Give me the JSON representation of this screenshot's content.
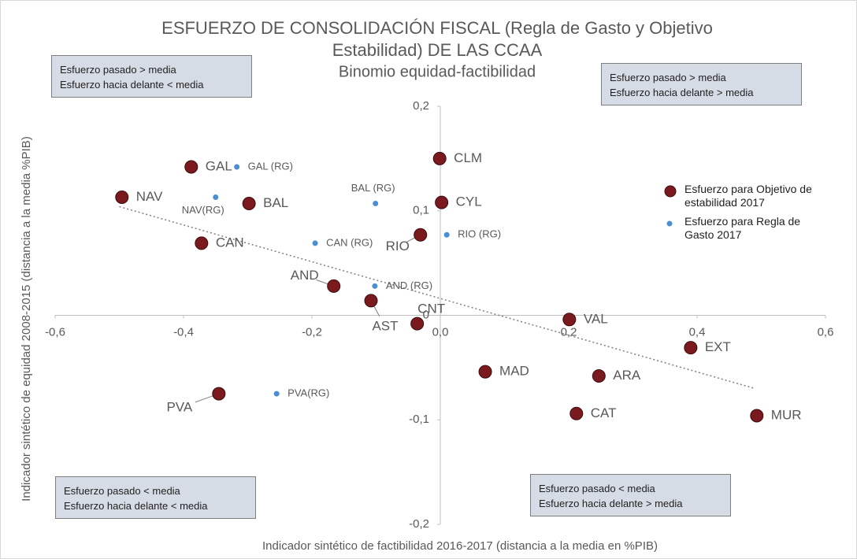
{
  "chart_data": {
    "type": "scatter",
    "title": "ESFUERZO DE CONSOLIDACIÓN  FISCAL (Regla de Gasto y Objetivo",
    "title_line2": "Estabilidad) DE LAS CCAA",
    "subtitle": "Binomio equidad-factibilidad",
    "x_label": "Indicador sintético de factibilidad 2016-2017 (distancia a la media en %PIB)",
    "y_label": "Indicador sintético de equidad 2008-2015 (distancia a la media %PIB)",
    "xlim": [
      -0.6,
      0.6
    ],
    "ylim": [
      -0.2,
      0.2
    ],
    "xticks": [
      {
        "value": -0.6,
        "label": "-0,6"
      },
      {
        "value": -0.4,
        "label": "-0,4"
      },
      {
        "value": -0.2,
        "label": "-0,2"
      },
      {
        "value": 0,
        "label": "0,0"
      },
      {
        "value": 0.2,
        "label": "0,2"
      },
      {
        "value": 0.4,
        "label": "0,4"
      },
      {
        "value": 0.6,
        "label": "0,6"
      }
    ],
    "yticks": [
      {
        "value": 0.2,
        "label": "0,2"
      },
      {
        "value": 0.1,
        "label": "0,1"
      },
      0,
      {
        "value": -0.1,
        "label": "-0,1"
      },
      {
        "value": -0.2,
        "label": "-0,2"
      }
    ],
    "series": [
      {
        "name": "Esfuerzo para Objetivo de estabilidad 2017",
        "color": "#7b1a1e",
        "labels": [
          "GAL",
          "NAV",
          "BAL",
          "CAN",
          "AND",
          "AST",
          "CNT",
          "CLM",
          "CYL",
          "RIO",
          "VAL",
          "MAD",
          "ARA",
          "CAT",
          "EXT",
          "MUR",
          "PVA"
        ],
        "x": [
          -0.388,
          -0.496,
          -0.298,
          -0.372,
          -0.166,
          -0.108,
          -0.036,
          -0.001,
          0.002,
          -0.031,
          0.201,
          0.07,
          0.247,
          0.212,
          0.39,
          0.493,
          -0.345
        ],
        "values": [
          0.142,
          0.113,
          0.107,
          0.069,
          0.028,
          0.014,
          -0.008,
          0.15,
          0.108,
          0.077,
          -0.004,
          -0.054,
          -0.058,
          -0.094,
          -0.031,
          -0.096,
          -0.075
        ]
      },
      {
        "name": "Esfuerzo para Regla de Gasto 2017",
        "color": "#4a8fd4",
        "labels": [
          "GAL (RG)",
          "NAV(RG)",
          "BAL (RG)",
          "CAN (RG)",
          "AND (RG)",
          "RIO (RG)",
          "PVA(RG)"
        ],
        "x": [
          -0.317,
          -0.35,
          -0.101,
          -0.195,
          -0.102,
          0.01,
          -0.255
        ],
        "values": [
          0.142,
          0.113,
          0.107,
          0.069,
          0.028,
          0.077,
          -0.075
        ]
      }
    ],
    "trendline": {
      "x": [
        -0.5,
        0.49
      ],
      "y": [
        0.104,
        -0.07
      ]
    },
    "quadrants": {
      "top_left": [
        "Esfuerzo pasado > media",
        "Esfuerzo hacia delante < media"
      ],
      "top_right": [
        "Esfuerzo pasado > media",
        "Esfuerzo hacia delante > media"
      ],
      "bottom_left": [
        "Esfuerzo pasado < media",
        "Esfuerzo hacia delante < media"
      ],
      "bottom_right": [
        "Esfuerzo pasado < media",
        "Esfuerzo hacia delante > media"
      ]
    }
  }
}
